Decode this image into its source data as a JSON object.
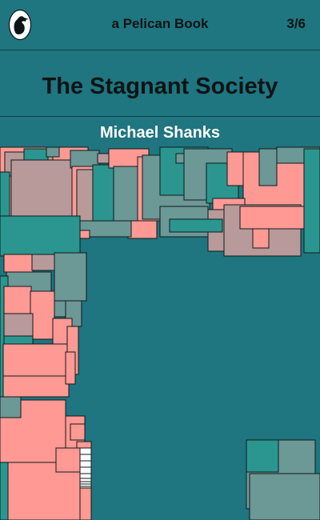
{
  "cover": {
    "publisher": "a Pelican Book",
    "price": "3/6",
    "title": "The Stagnant Society",
    "author": "Michael Shanks"
  },
  "colors": {
    "background": "#1f7580",
    "pink": "#ff9994",
    "grey": "#b89a9a",
    "teal": "#2b9690",
    "sage": "#6c9896",
    "ink": "#0e1414"
  },
  "icons": {
    "logo": "pelican-logo"
  }
}
